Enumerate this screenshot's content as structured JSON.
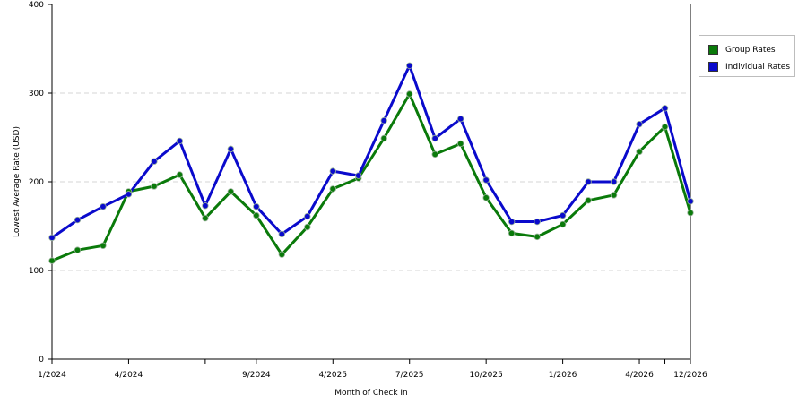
{
  "chart_data": {
    "type": "line",
    "title": "",
    "xlabel": "Month of Check In",
    "ylabel": "Lowest Average Rate (USD)",
    "ylim": [
      0,
      400
    ],
    "yticks": [
      0,
      100,
      200,
      300,
      400
    ],
    "grid": "horizontal-dashed",
    "legend_position": "right",
    "x_count": 26,
    "x_ticks": [
      {
        "index": 0,
        "label": "1/2024"
      },
      {
        "index": 3,
        "label": "4/2024"
      },
      {
        "index": 6,
        "label": ""
      },
      {
        "index": 8,
        "label": "9/2024"
      },
      {
        "index": 11,
        "label": "4/2025"
      },
      {
        "index": 14,
        "label": "7/2025"
      },
      {
        "index": 17,
        "label": "10/2025"
      },
      {
        "index": 20,
        "label": "1/2026"
      },
      {
        "index": 23,
        "label": "4/2026"
      },
      {
        "index": 24,
        "label": ""
      },
      {
        "index": 25,
        "label": "12/2026"
      }
    ],
    "series": [
      {
        "name": "Group Rates",
        "color": "#0a7a0a",
        "values": [
          111,
          123,
          128,
          189,
          195,
          208,
          159,
          189,
          162,
          118,
          149,
          192,
          204,
          249,
          299,
          231,
          243,
          182,
          142,
          138,
          152,
          179,
          185,
          234,
          262,
          165
        ]
      },
      {
        "name": "Individual Rates",
        "color": "#0a0acc",
        "values": [
          137,
          157,
          172,
          186,
          223,
          246,
          173,
          237,
          172,
          141,
          161,
          212,
          207,
          269,
          331,
          249,
          271,
          202,
          155,
          155,
          162,
          200,
          200,
          265,
          283,
          178
        ]
      }
    ]
  }
}
